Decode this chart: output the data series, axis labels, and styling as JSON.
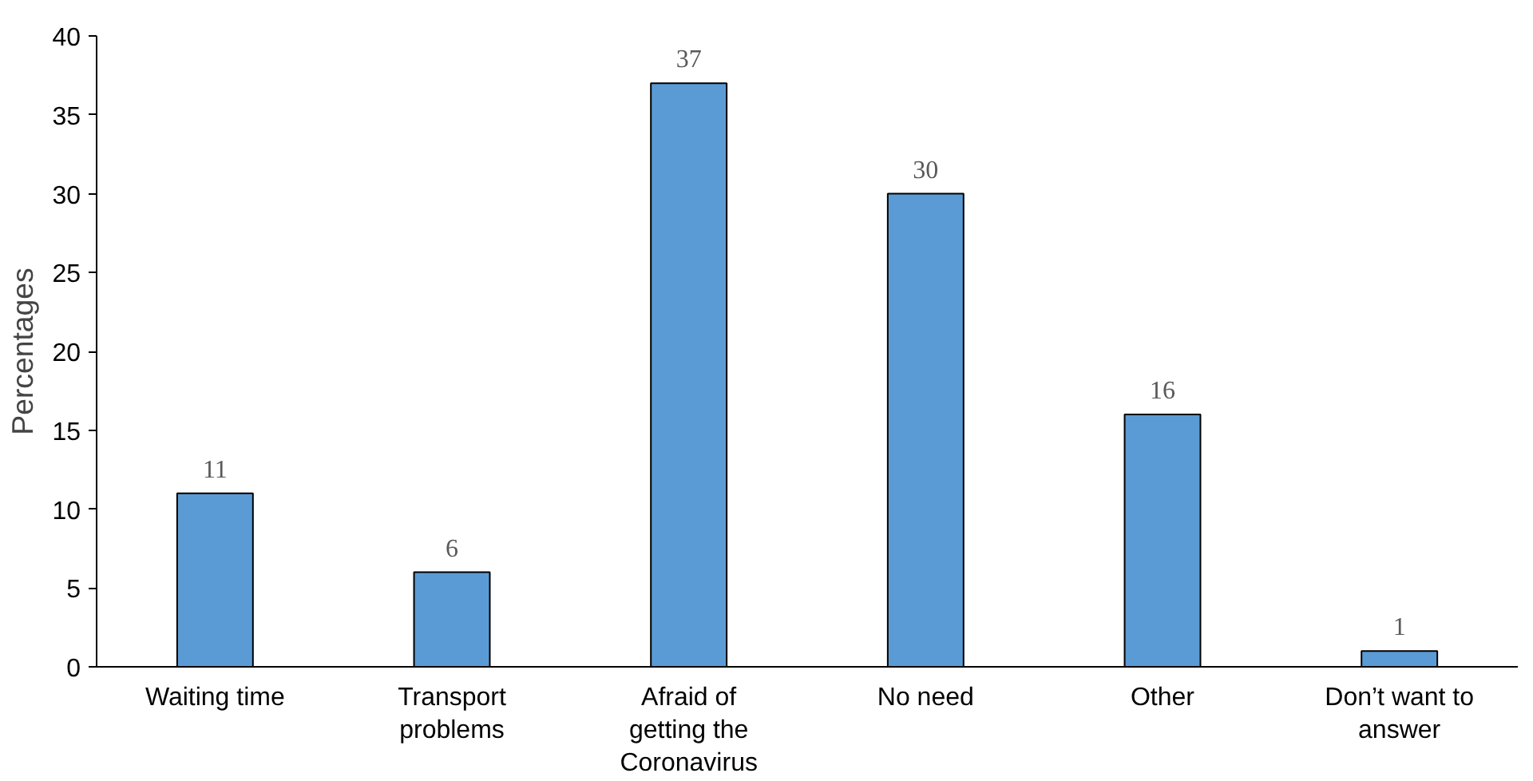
{
  "chart_data": {
    "type": "bar",
    "ylabel": "Percentages",
    "categories": [
      "Waiting time",
      "Transport\nproblems",
      "Afraid of\ngetting the\nCoronavirus",
      "No need",
      "Other",
      "Don’t want to\nanswer"
    ],
    "values": [
      11,
      6,
      37,
      30,
      16,
      1
    ],
    "color": "#5b9bd5",
    "ylim": [
      0,
      40
    ],
    "yticks": [
      0,
      5,
      10,
      15,
      20,
      25,
      30,
      35,
      40
    ],
    "grid": false,
    "data_labels": true
  }
}
